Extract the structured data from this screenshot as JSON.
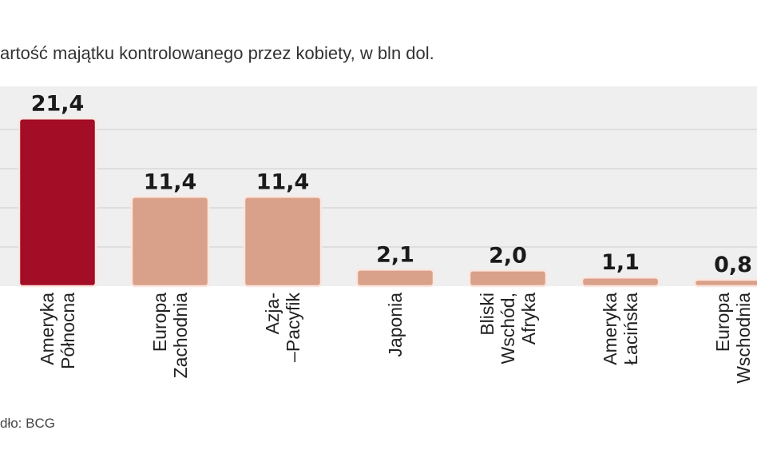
{
  "title": "artość majątku kontrolowanego przez kobiety, w bln dol.",
  "source": "dło: BCG",
  "colors": {
    "highlight": "#a30d26",
    "bar": "#d9a08a",
    "plot_bg": "#efefef",
    "grid": "#d8d8d8"
  },
  "chart_data": {
    "type": "bar",
    "title": "artość majątku kontrolowanego przez kobiety, w bln dol.",
    "categories": [
      [
        "Ameryka",
        "Północna"
      ],
      [
        "Europa",
        "Zachodnia"
      ],
      [
        "Azja-",
        "–Pacyfik"
      ],
      [
        "Japonia"
      ],
      [
        "Bliski",
        "Wschód,",
        "Afryka"
      ],
      [
        "Ameryka",
        "Łacińska"
      ],
      [
        "Europa",
        "Wschodnia"
      ]
    ],
    "values": [
      21.4,
      11.4,
      11.4,
      2.1,
      2.0,
      1.1,
      0.8
    ],
    "value_labels": [
      "21,4",
      "11,4",
      "11,4",
      "2,1",
      "2,0",
      "1,1",
      "0,8"
    ],
    "highlight_index": 0,
    "ylim": [
      0,
      22
    ],
    "grid": true,
    "xlabel": "",
    "ylabel": ""
  }
}
